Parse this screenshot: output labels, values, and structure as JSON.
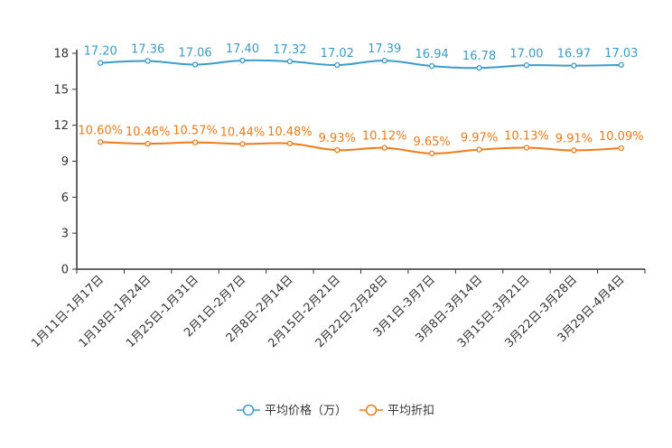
{
  "chart_data": {
    "type": "line",
    "title": "",
    "xlabel": "",
    "ylabel": "",
    "ylim": [
      0,
      18
    ],
    "yticks": [
      "0",
      "3",
      "6",
      "9",
      "12",
      "15",
      "18"
    ],
    "categories": [
      "1月11日-1月17日",
      "1月18日-1月24日",
      "1月25日-1月31日",
      "2月1日-2月7日",
      "2月8日-2月14日",
      "2月15日-2月21日",
      "2月22日-2月28日",
      "3月1日-3月7日",
      "3月8日-3月14日",
      "3月15日-3月21日",
      "3月22日-3月28日",
      "3月29日-4月4日"
    ],
    "series": [
      {
        "name": "平均价格（万）",
        "color": "#3b9bcb",
        "values": [
          17.2,
          17.36,
          17.06,
          17.4,
          17.32,
          17.02,
          17.39,
          16.94,
          16.78,
          17.0,
          16.97,
          17.03
        ],
        "labels": [
          "17.20",
          "17.36",
          "17.06",
          "17.40",
          "17.32",
          "17.02",
          "17.39",
          "16.94",
          "16.78",
          "17.00",
          "16.97",
          "17.03"
        ]
      },
      {
        "name": "平均折扣",
        "color": "#f07b1a",
        "values": [
          10.6,
          10.46,
          10.57,
          10.44,
          10.48,
          9.93,
          10.12,
          9.65,
          9.97,
          10.13,
          9.91,
          10.09
        ],
        "labels": [
          "10.60%",
          "10.46%",
          "10.57%",
          "10.44%",
          "10.48%",
          "9.93%",
          "10.12%",
          "9.65%",
          "9.97%",
          "10.13%",
          "9.91%",
          "10.09%"
        ]
      }
    ],
    "legend": {
      "position": "bottom"
    }
  }
}
